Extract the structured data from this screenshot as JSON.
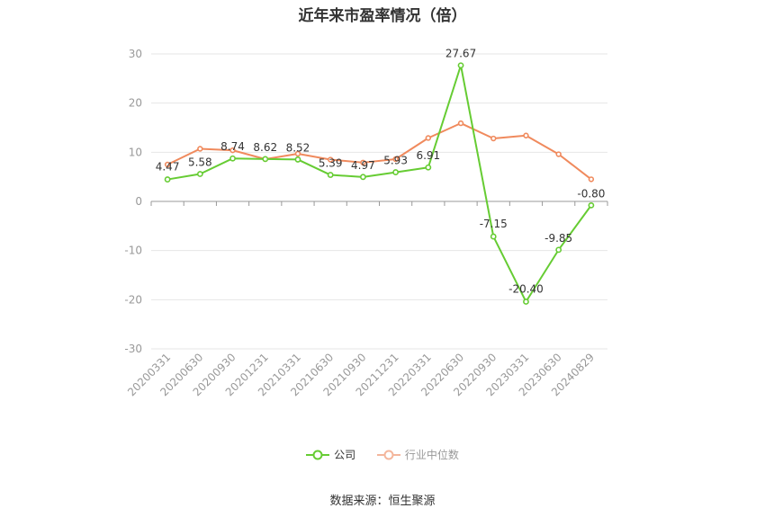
{
  "chart_data": {
    "type": "line",
    "title": "近年来市盈率情况（倍）",
    "categories": [
      "20200331",
      "20200630",
      "20200930",
      "20201231",
      "20210331",
      "20210630",
      "20210930",
      "20211231",
      "20220331",
      "20220630",
      "20220930",
      "20230331",
      "20230630",
      "20240829"
    ],
    "ylim": [
      -30,
      30
    ],
    "yticks": [
      30,
      20,
      10,
      0,
      -10,
      -20,
      -30
    ],
    "grid": true,
    "legend_position": "bottom",
    "series": [
      {
        "name": "公司",
        "color": "#66cc33",
        "values": [
          4.47,
          5.58,
          8.74,
          8.62,
          8.52,
          5.39,
          4.97,
          5.93,
          6.91,
          27.67,
          -7.15,
          -20.4,
          -9.85,
          -0.8
        ],
        "labels": [
          "4.47",
          "5.58",
          "8.74",
          "8.62",
          "8.52",
          "5.39",
          "4.97",
          "5.93",
          "6.91",
          "27.67",
          "-7.15",
          "-20.40",
          "-9.85",
          "-0.80"
        ]
      },
      {
        "name": "行业中位数",
        "color": "#f08a5d",
        "values": [
          7.5,
          10.7,
          10.4,
          8.6,
          9.7,
          8.5,
          7.9,
          8.6,
          12.9,
          15.9,
          12.8,
          13.4,
          9.6,
          4.5
        ]
      }
    ]
  },
  "source": "数据来源：恒生聚源"
}
